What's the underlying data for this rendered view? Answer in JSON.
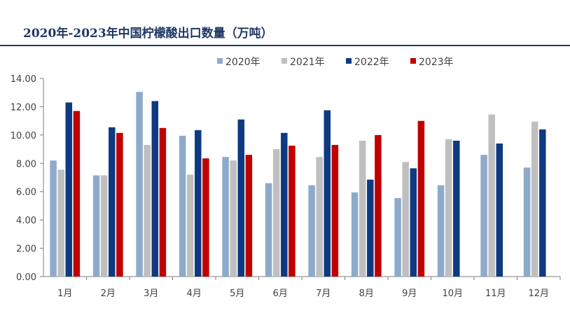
{
  "chart_data": {
    "type": "bar",
    "title": "2020年-2023年中国柠檬酸出口数量（万吨）",
    "categories": [
      "1月",
      "2月",
      "3月",
      "4月",
      "5月",
      "6月",
      "7月",
      "8月",
      "9月",
      "10月",
      "11月",
      "12月"
    ],
    "series": [
      {
        "name": "2020年",
        "color": "#8eaacb",
        "values": [
          8.2,
          7.15,
          13.05,
          9.95,
          8.45,
          6.6,
          6.45,
          5.95,
          5.55,
          6.45,
          8.6,
          7.7
        ]
      },
      {
        "name": "2021年",
        "color": "#bfbfbf",
        "values": [
          7.55,
          7.15,
          9.3,
          7.2,
          8.2,
          9.0,
          8.45,
          9.6,
          8.1,
          9.7,
          11.45,
          10.95
        ]
      },
      {
        "name": "2022年",
        "color": "#0e3a82",
        "values": [
          12.3,
          10.55,
          12.4,
          10.35,
          11.1,
          10.15,
          11.75,
          6.85,
          7.65,
          9.6,
          9.4,
          10.4
        ]
      },
      {
        "name": "2023年",
        "color": "#c00000",
        "values": [
          11.7,
          10.15,
          10.5,
          8.35,
          8.6,
          9.25,
          9.3,
          10.0,
          11.0,
          null,
          null,
          null
        ]
      }
    ],
    "ylim": [
      0,
      14
    ],
    "yticks": [
      "0.00",
      "2.00",
      "4.00",
      "6.00",
      "8.00",
      "10.00",
      "12.00",
      "14.00"
    ],
    "xlabel": "",
    "ylabel": "",
    "grid": false,
    "legend": "top-right"
  }
}
